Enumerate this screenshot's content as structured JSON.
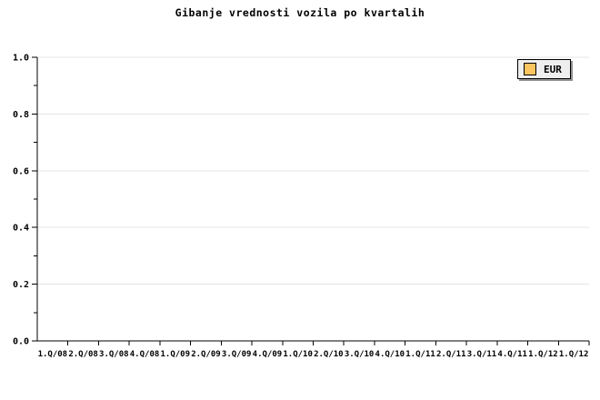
{
  "chart_data": {
    "type": "line",
    "title": "Gibanje vrednosti vozila po kvartalih",
    "categories": [
      "1.Q/08",
      "2.Q/08",
      "3.Q/08",
      "4.Q/08",
      "1.Q/09",
      "2.Q/09",
      "3.Q/09",
      "4.Q/09",
      "1.Q/10",
      "2.Q/10",
      "3.Q/10",
      "4.Q/10",
      "1.Q/11",
      "2.Q/11",
      "3.Q/11",
      "4.Q/11",
      "1.Q/12",
      "1.Q/12"
    ],
    "series": [
      {
        "name": "EUR",
        "values": []
      }
    ],
    "xlabel": "",
    "ylabel": "",
    "ylim": [
      0.0,
      1.0
    ],
    "y_major_ticks": [
      0.0,
      0.2,
      0.4,
      0.6,
      0.8,
      1.0
    ],
    "y_minor_tick_step": 0.1,
    "grid": "horizontal major gridlines only",
    "legend_position": "top-right"
  },
  "legend": {
    "items": [
      {
        "label": "EUR",
        "swatch_color": "#fac45f"
      }
    ]
  },
  "colors": {
    "background": "#ffffff",
    "axis": "#000000",
    "gridline": "#e4e4e4",
    "tick_text": "#000000",
    "legend_background": "#eeeeee",
    "legend_border": "#000000",
    "legend_shadow": "#8f8f8f",
    "series_eur_swatch": "#fac45f"
  }
}
